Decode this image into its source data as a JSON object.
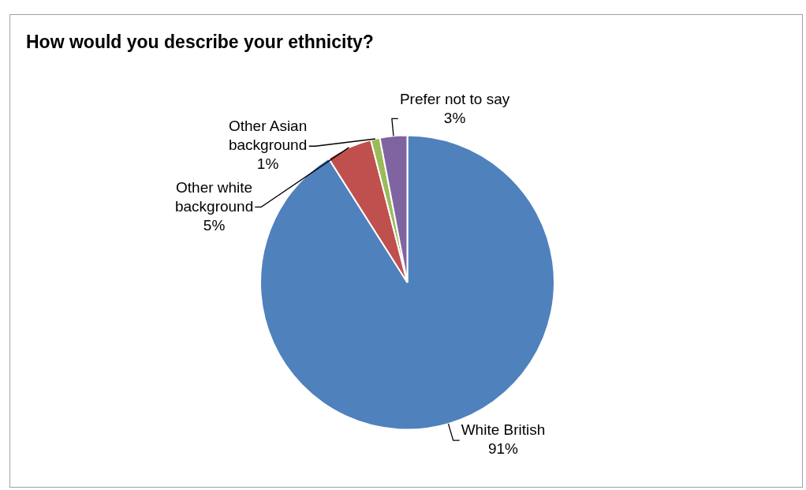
{
  "chart_data": {
    "type": "pie",
    "title": "How would you describe your ethnicity?",
    "categories": [
      "White British",
      "Other white background",
      "Other Asian background",
      "Prefer not to say"
    ],
    "values": [
      91,
      5,
      1,
      3
    ],
    "colors": [
      "#4f81bd",
      "#c0504d",
      "#9bbb59",
      "#8064a2"
    ],
    "value_labels": [
      "91%",
      "5%",
      "1%",
      "3%"
    ],
    "legend": false
  }
}
